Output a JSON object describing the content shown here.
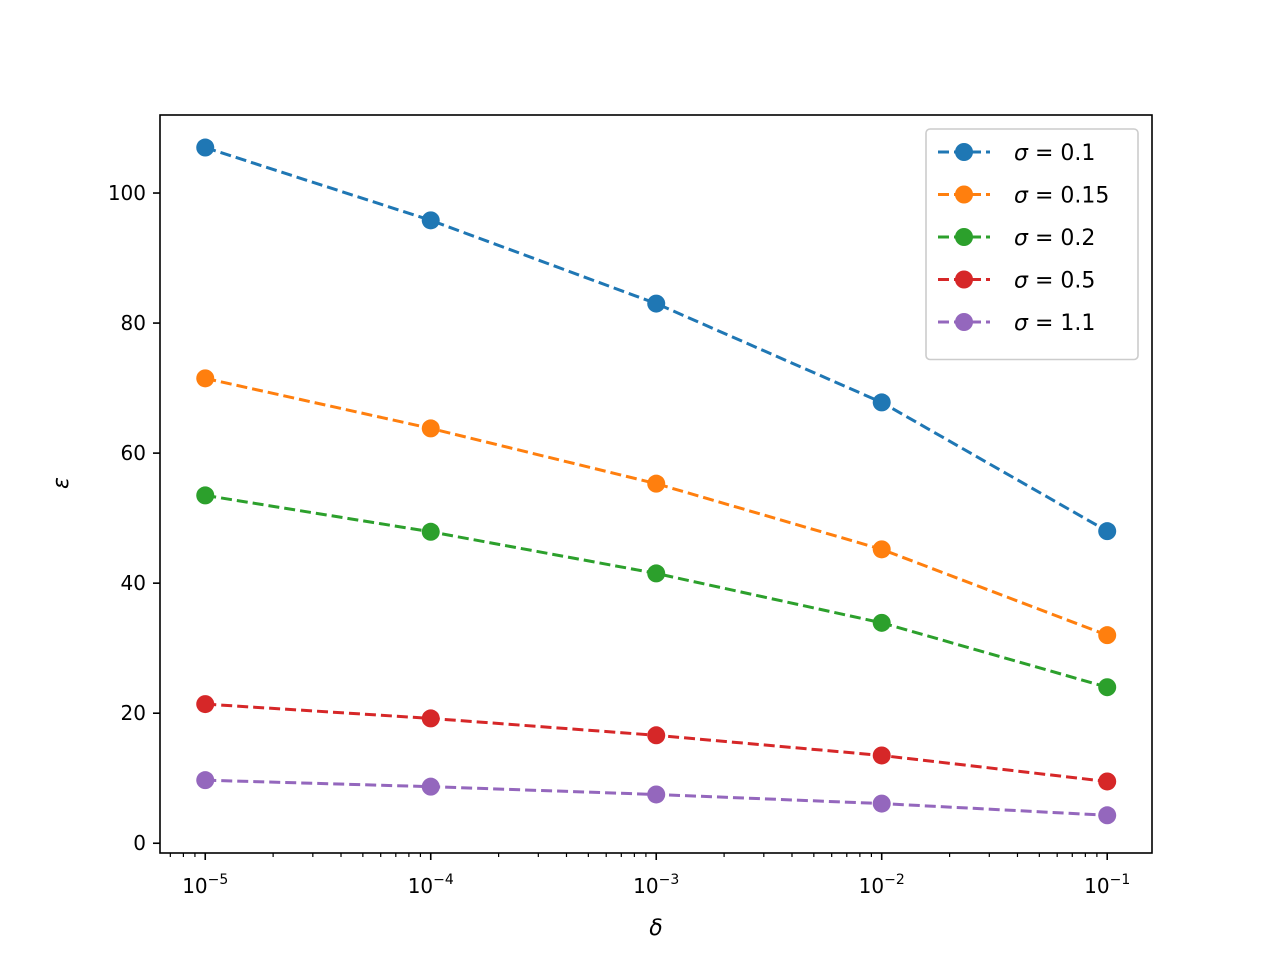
{
  "chart_data": {
    "type": "line",
    "xscale": "log",
    "x": [
      1e-05,
      0.0001,
      0.001,
      0.01,
      0.1
    ],
    "xlabel": "δ",
    "ylabel": "ε",
    "ylim": [
      -1.5,
      112
    ],
    "xlim": [
      6.3e-06,
      0.158
    ],
    "xtick_labels": [
      {
        "base": "10",
        "exp": "−5"
      },
      {
        "base": "10",
        "exp": "−4"
      },
      {
        "base": "10",
        "exp": "−3"
      },
      {
        "base": "10",
        "exp": "−2"
      },
      {
        "base": "10",
        "exp": "−1"
      }
    ],
    "yticks": [
      0,
      20,
      40,
      60,
      80,
      100
    ],
    "ytick_labels": [
      "0",
      "20",
      "40",
      "60",
      "80",
      "100"
    ],
    "grid": false,
    "legend_position": "top-right",
    "line_style": "dashed",
    "marker": "circle",
    "series": [
      {
        "name": "0.1",
        "color": "#1f77b4",
        "values": [
          107.0,
          95.8,
          83.0,
          67.8,
          48.0
        ]
      },
      {
        "name": "0.15",
        "color": "#ff7f0e",
        "values": [
          71.5,
          63.8,
          55.3,
          45.2,
          32.0
        ]
      },
      {
        "name": "0.2",
        "color": "#2ca02c",
        "values": [
          53.5,
          47.9,
          41.5,
          33.9,
          24.0
        ]
      },
      {
        "name": "0.5",
        "color": "#d62728",
        "values": [
          21.4,
          19.2,
          16.6,
          13.5,
          9.5
        ]
      },
      {
        "name": "1.1",
        "color": "#9467bd",
        "values": [
          9.7,
          8.7,
          7.5,
          6.1,
          4.3
        ]
      }
    ],
    "legend_symbol": "σ",
    "legend_eq": " = "
  }
}
